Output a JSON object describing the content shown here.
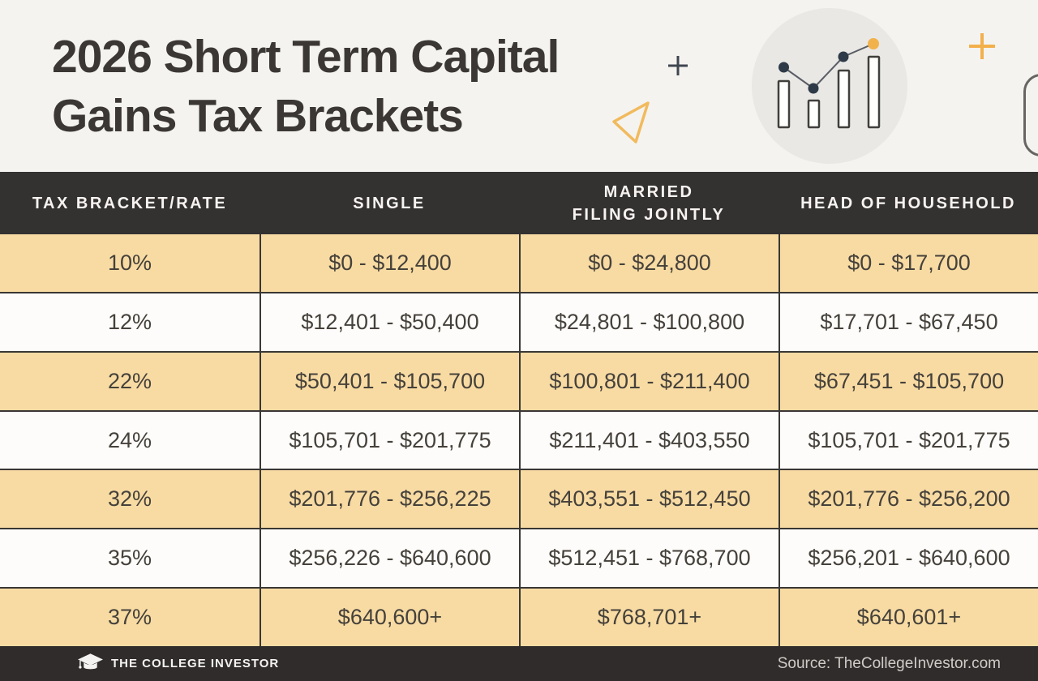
{
  "hero": {
    "title_line1": "2026 Short Term Capital",
    "title_line2": "Gains Tax Brackets"
  },
  "table_header": {
    "col1": "TAX BRACKET/RATE",
    "col2": "SINGLE",
    "col3_line1": "MARRIED",
    "col3_line2": "FILING JOINTLY",
    "col4": "HEAD OF HOUSEHOLD"
  },
  "chart_data": {
    "type": "table",
    "title": "2026 Short Term Capital Gains Tax Brackets",
    "columns": [
      "Tax Bracket/Rate",
      "Single",
      "Married Filing Jointly",
      "Head of Household"
    ],
    "rows": [
      [
        "10%",
        "$0 - $12,400",
        "$0 - $24,800",
        "$0 - $17,700"
      ],
      [
        "12%",
        "$12,401 - $50,400",
        "$24,801 - $100,800",
        "$17,701 - $67,450"
      ],
      [
        "22%",
        "$50,401 - $105,700",
        "$100,801 - $211,400",
        "$67,451 - $105,700"
      ],
      [
        "24%",
        "$105,701 - $201,775",
        "$211,401 - $403,550",
        "$105,701 - $201,775"
      ],
      [
        "32%",
        "$201,776 - $256,225",
        "$403,551 - $512,450",
        "$201,776 - $256,200"
      ],
      [
        "35%",
        "$256,226 - $640,600",
        "$512,451 - $768,700",
        "$256,201 - $640,600"
      ],
      [
        "37%",
        "$640,600+",
        "$768,701+",
        "$640,601+"
      ]
    ]
  },
  "footer": {
    "brand": "THE COLLEGE INVESTOR",
    "source": "Source: TheCollegeInvestor.com"
  },
  "icons": {
    "decorations": [
      "plus-dark-icon",
      "triangle-outline-icon",
      "bar-chart-circle-icon",
      "plus-orange-icon",
      "rounded-rect-outline"
    ],
    "footer_logo": "graduation-cap-icon"
  },
  "colors": {
    "page_bg": "#F4F3F0",
    "header_bg": "#343131",
    "row_tan": "#F8DBA3",
    "row_white": "#FDFCFA",
    "footer_bg": "#2F2C2B",
    "title_text": "#3A3734",
    "cell_text": "#45413B",
    "border": "#3A3734",
    "accent_orange": "#F2B24B",
    "dot_navy": "#2E3A47",
    "circle_bg": "#E9E8E5"
  }
}
